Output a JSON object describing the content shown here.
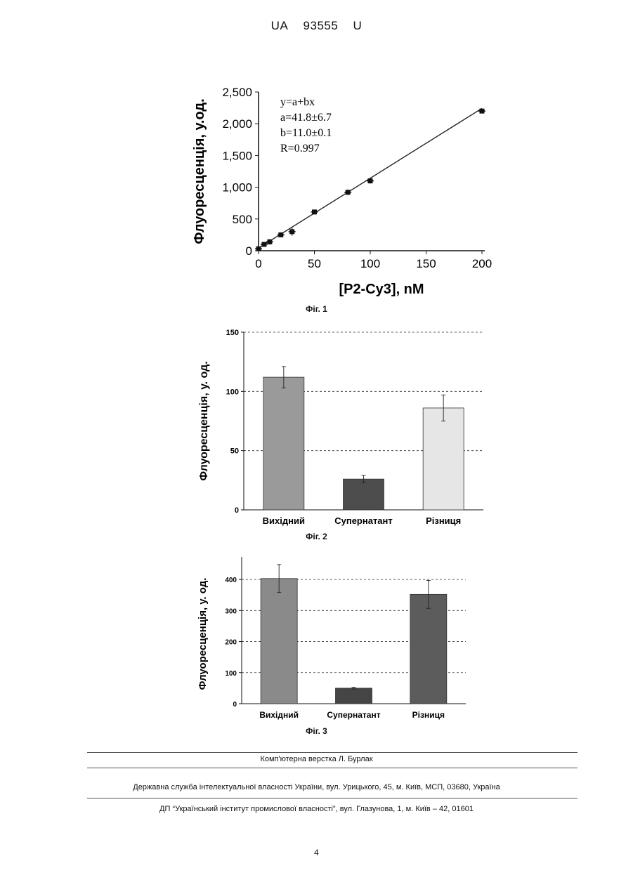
{
  "header": {
    "country": "UA",
    "number": "93555",
    "kind": "U"
  },
  "figures": [
    {
      "caption": "Фіг. 1"
    },
    {
      "caption": "Фіг. 2"
    },
    {
      "caption": "Фіг. 3"
    }
  ],
  "chart_data": [
    {
      "type": "scatter",
      "xlabel": "[P2-Cy3], nM",
      "ylabel": "Флуоресценція, у.од.",
      "xlim": [
        0,
        200
      ],
      "ylim": [
        0,
        2500
      ],
      "xticks": [
        "0",
        "50",
        "100",
        "150",
        "200"
      ],
      "yticks": [
        "0",
        "500",
        "1,000",
        "1,500",
        "2,000",
        "2,500"
      ],
      "x": [
        0,
        5,
        10,
        20,
        30,
        50,
        80,
        100,
        200
      ],
      "y": [
        30,
        100,
        140,
        250,
        300,
        610,
        920,
        1100,
        2200
      ],
      "yerr": [
        10,
        15,
        20,
        15,
        40,
        15,
        20,
        20,
        15
      ],
      "fit": {
        "a": 41.8,
        "b": 11.0
      },
      "annotation": [
        "y=a+bx",
        "a=41.8±6.7",
        "b=11.0±0.1",
        "R=0.997"
      ],
      "grid": false
    },
    {
      "type": "bar",
      "ylabel": "Флуоресценція,  у. од.",
      "categories": [
        "Вихідний",
        "Супернатант",
        "Різниця"
      ],
      "values": [
        112,
        26,
        86
      ],
      "errors": [
        9,
        3,
        11
      ],
      "colors": [
        "#9a9a9a",
        "#4d4d4d",
        "#e6e6e6"
      ],
      "ylim": [
        0,
        150
      ],
      "yticks": [
        "0",
        "50",
        "100",
        "150"
      ],
      "grid": "dashed"
    },
    {
      "type": "bar",
      "ylabel": "Флуоресценція,  у. од.",
      "categories": [
        "Вихідний",
        "Супернатант",
        "Різниця"
      ],
      "values": [
        403,
        50,
        352
      ],
      "errors": [
        45,
        3,
        45
      ],
      "colors": [
        "#8a8a8a",
        "#454545",
        "#5c5c5c"
      ],
      "ylim": [
        0,
        450
      ],
      "yticks": [
        "0",
        "100",
        "200",
        "300",
        "400"
      ],
      "grid": "dashed"
    }
  ],
  "footer": {
    "layout": "Комп'ютерна верстка Л. Бурлак",
    "service": "Державна служба інтелектуальної власності України, вул. Урицького, 45, м. Київ, МСП, 03680, Україна",
    "institute": "ДП “Український інститут промислової власності”, вул. Глазунова, 1, м. Київ – 42, 01601"
  },
  "page_number": "4"
}
